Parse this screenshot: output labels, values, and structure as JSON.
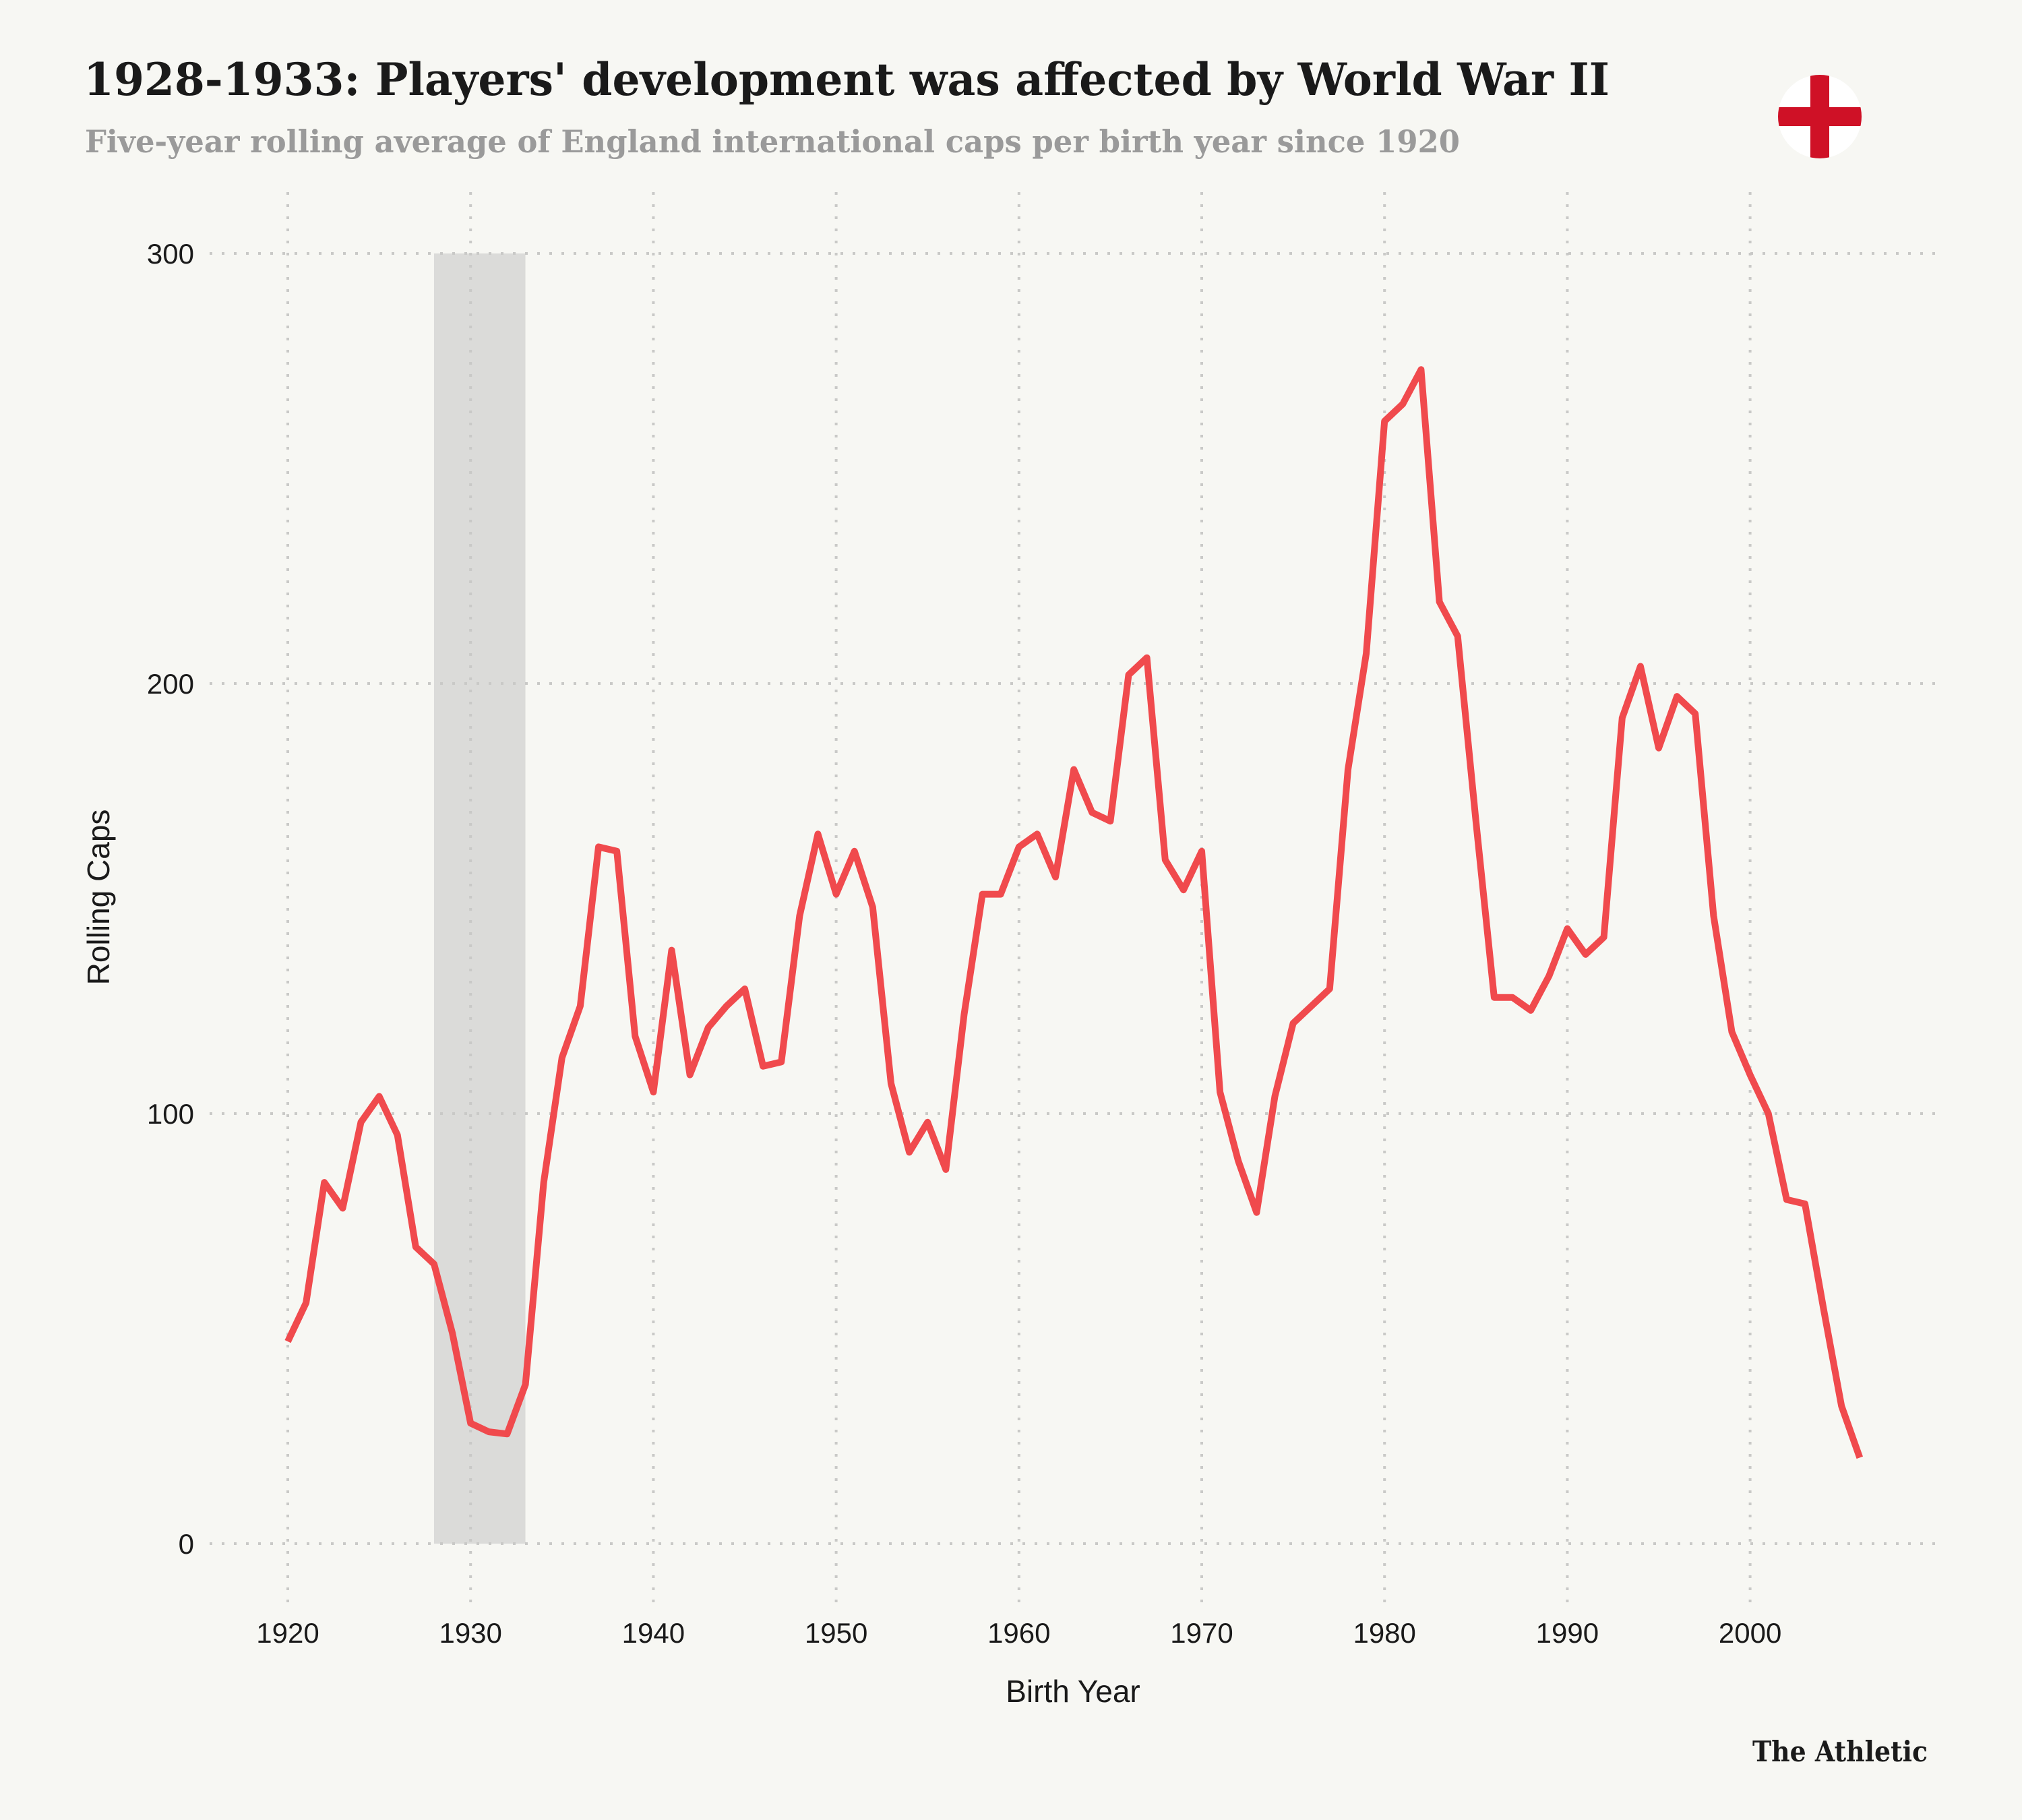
{
  "header": {
    "title": "1928-1933: Players' development was affected by World War II",
    "subtitle": "Five-year rolling average of England international caps per birth year since 1920",
    "flag_icon": "england-flag-icon"
  },
  "footer": {
    "brand": "The Athletic"
  },
  "colors": {
    "background": "#f7f7f3",
    "line": "#f04a4d",
    "highlight_band": "#dbdbd9",
    "grid": "#c9c9c7",
    "flag_red": "#cf1126",
    "flag_white": "#ffffff",
    "title": "#1a1a1a",
    "subtitle": "#9a9a9a"
  },
  "chart_data": {
    "type": "line",
    "title": "1928-1933: Players' development was affected by World War II",
    "subtitle": "Five-year rolling average of England international caps per birth year since 1920",
    "xlabel": "Birth Year",
    "ylabel": "Rolling Caps",
    "xlim": [
      1914.9,
      2010.3
    ],
    "ylim": [
      0,
      300
    ],
    "x_ticks": [
      1920,
      1930,
      1940,
      1950,
      1960,
      1970,
      1980,
      1990,
      2000
    ],
    "x_tick_labels": [
      "1920",
      "1930",
      "1940",
      "1950",
      "1960",
      "1970",
      "1980",
      "1990",
      "2000"
    ],
    "y_ticks": [
      0,
      100,
      200,
      300
    ],
    "y_tick_labels": [
      "0",
      "100",
      "200",
      "300"
    ],
    "grid": true,
    "legend": "none",
    "highlight_range": {
      "x_start": 1928,
      "x_end": 1933,
      "label": "1928-1933"
    },
    "x": [
      1920,
      1921,
      1922,
      1923,
      1924,
      1925,
      1926,
      1927,
      1928,
      1929,
      1930,
      1931,
      1932,
      1933,
      1934,
      1935,
      1936,
      1937,
      1938,
      1939,
      1940,
      1941,
      1942,
      1943,
      1944,
      1945,
      1946,
      1947,
      1948,
      1949,
      1950,
      1951,
      1952,
      1953,
      1954,
      1955,
      1956,
      1957,
      1958,
      1959,
      1960,
      1961,
      1962,
      1963,
      1964,
      1965,
      1966,
      1967,
      1968,
      1969,
      1970,
      1971,
      1972,
      1973,
      1974,
      1975,
      1976,
      1977,
      1978,
      1979,
      1980,
      1981,
      1982,
      1983,
      1984,
      1985,
      1986,
      1987,
      1988,
      1989,
      1990,
      1991,
      1992,
      1993,
      1994,
      1995,
      1996,
      1997,
      1998,
      1999,
      2000,
      2001,
      2002,
      2003,
      2004,
      2005,
      2006
    ],
    "series": [
      {
        "name": "Rolling Caps",
        "values": [
          47,
          56,
          84,
          78,
          98,
          104,
          95,
          69,
          65,
          49,
          28,
          26,
          25.5,
          37,
          84,
          113,
          125,
          162,
          161,
          118,
          105,
          138,
          109,
          120,
          125,
          129,
          111,
          112,
          146,
          165,
          151,
          161,
          148,
          107,
          91,
          98,
          87,
          123,
          151,
          151,
          162,
          165,
          155,
          180,
          170,
          168,
          202,
          206,
          159,
          152,
          161,
          105,
          89,
          77,
          104,
          121,
          125,
          129,
          180,
          207,
          261,
          265,
          273,
          219,
          211,
          168,
          127,
          127,
          124,
          132,
          143,
          137,
          141,
          192,
          204,
          185,
          197,
          193,
          146,
          119,
          109,
          100,
          80,
          79,
          55,
          32,
          20
        ]
      }
    ]
  }
}
